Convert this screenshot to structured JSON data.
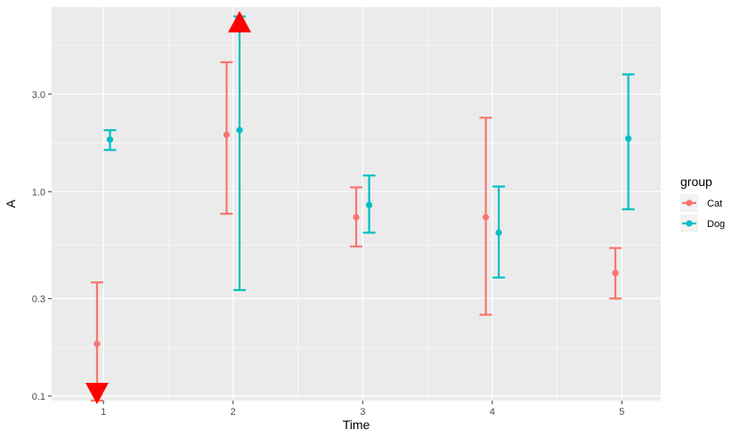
{
  "chart_data": {
    "type": "errorbar",
    "xlabel": "Time",
    "ylabel": "A",
    "y_scale": "log10",
    "ylim": [
      0.095,
      8.0
    ],
    "xlim": [
      0.6,
      5.3
    ],
    "x_ticks": [
      1,
      2,
      3,
      4,
      5
    ],
    "x_tick_labels": [
      "1",
      "2",
      "3",
      "4",
      "5"
    ],
    "y_ticks": [
      0.1,
      0.3,
      1.0,
      3.0
    ],
    "y_tick_labels": [
      "0.1",
      "0.3",
      "1.0",
      "3.0"
    ],
    "grid": true,
    "legend": {
      "title": "group",
      "position": "right"
    },
    "dodge": 0.1,
    "series": [
      {
        "name": "Cat",
        "color": "#F8766D",
        "x": [
          1,
          2,
          3,
          4,
          5
        ],
        "y": [
          0.18,
          1.9,
          0.75,
          0.75,
          0.4
        ],
        "lower": [
          0.095,
          0.78,
          0.54,
          0.25,
          0.3
        ],
        "upper": [
          0.36,
          4.3,
          1.05,
          2.3,
          0.53
        ]
      },
      {
        "name": "Dog",
        "color": "#00BFC4",
        "x": [
          1,
          2,
          3,
          4,
          5
        ],
        "y": [
          1.8,
          2.0,
          0.86,
          0.63,
          1.82
        ],
        "lower": [
          1.6,
          0.33,
          0.63,
          0.38,
          0.82
        ],
        "upper": [
          2.0,
          7.2,
          1.2,
          1.06,
          3.75
        ]
      }
    ],
    "annotations": [
      {
        "shape": "arrow-down",
        "color": "#FF0000",
        "x": 1,
        "y": 0.095,
        "series": "Cat"
      },
      {
        "shape": "arrow-up",
        "color": "#FF0000",
        "x": 2,
        "y": 7.5,
        "series": "Dog"
      }
    ]
  }
}
